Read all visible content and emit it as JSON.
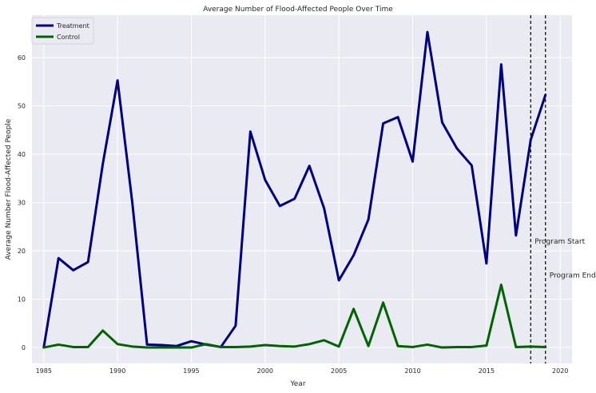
{
  "chart_data": {
    "type": "line",
    "title": "Average Number of Flood-Affected People Over Time",
    "xlabel": "Year",
    "ylabel": "Average Number Flood-Affected People",
    "xlim": [
      1984.2,
      2020.8
    ],
    "ylim": [
      -3.3,
      68.8
    ],
    "xticks": [
      1985,
      1990,
      1995,
      2000,
      2005,
      2010,
      2015,
      2020
    ],
    "yticks": [
      0,
      10,
      20,
      30,
      40,
      50,
      60
    ],
    "grid": true,
    "legend": "top-left",
    "x": [
      1985,
      1986,
      1987,
      1988,
      1989,
      1990,
      1991,
      1992,
      1993,
      1994,
      1995,
      1996,
      1997,
      1998,
      1999,
      2000,
      2001,
      2002,
      2003,
      2004,
      2005,
      2006,
      2007,
      2008,
      2009,
      2010,
      2011,
      2012,
      2013,
      2014,
      2015,
      2016,
      2017,
      2018,
      2019
    ],
    "series": [
      {
        "name": "Treatment",
        "color": "#000080",
        "values": [
          0.0,
          18.5,
          16.0,
          17.7,
          38.0,
          55.3,
          30.0,
          0.6,
          0.5,
          0.3,
          1.3,
          0.6,
          0.1,
          4.5,
          44.7,
          34.7,
          29.3,
          30.8,
          37.6,
          28.8,
          13.9,
          19.1,
          26.5,
          46.4,
          47.7,
          38.5,
          65.3,
          46.6,
          41.2,
          37.7,
          17.4,
          58.6,
          23.2,
          43.0,
          52.3
        ]
      },
      {
        "name": "Control",
        "color": "#006400",
        "values": [
          0.0,
          0.6,
          0.1,
          0.1,
          3.5,
          0.7,
          0.2,
          0.0,
          0.0,
          0.0,
          0.0,
          0.7,
          0.1,
          0.1,
          0.2,
          0.5,
          0.3,
          0.2,
          0.7,
          1.5,
          0.2,
          8.0,
          0.3,
          9.3,
          0.3,
          0.1,
          0.6,
          0.0,
          0.1,
          0.1,
          0.4,
          13.0,
          0.1,
          0.2,
          0.1
        ]
      }
    ],
    "annotations": [
      {
        "label": "Program Start",
        "x": 2018,
        "y": 22
      },
      {
        "label": "Program End",
        "x": 2019,
        "y": 15
      }
    ]
  }
}
